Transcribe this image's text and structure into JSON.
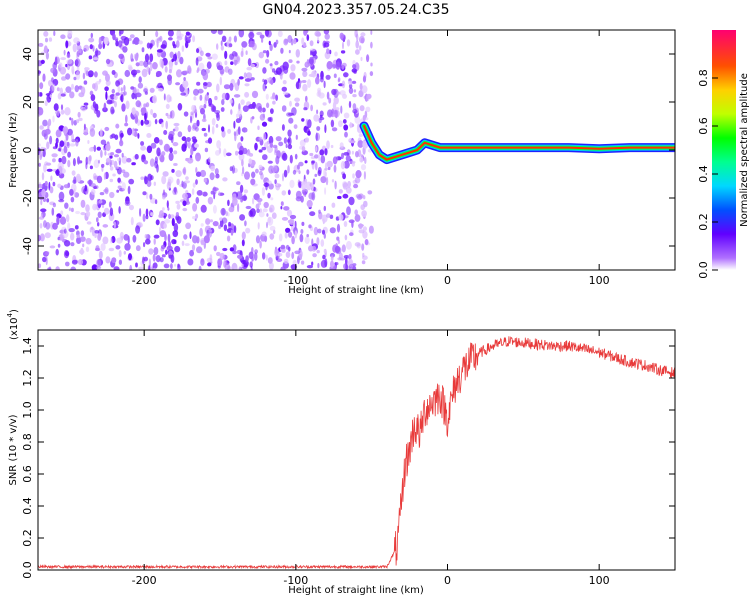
{
  "title": "GN04.2023.357.05.24.C35",
  "chart_data": [
    {
      "type": "heatmap",
      "xlabel": "Height of straight line (km)",
      "ylabel": "Frequency (Hz)",
      "xlim": [
        -270,
        150
      ],
      "ylim": [
        -50,
        50
      ],
      "xticks": [
        -200,
        -100,
        0,
        100
      ],
      "yticks": [
        -40,
        -20,
        0,
        20,
        40
      ],
      "colorbar": {
        "label": "Normalized spectral amplitude",
        "range": [
          0,
          1
        ],
        "ticks": [
          0.0,
          0.2,
          0.4,
          0.6,
          0.8
        ]
      },
      "ridge": [
        {
          "x": -55,
          "y": 10
        },
        {
          "x": -50,
          "y": 3
        },
        {
          "x": -45,
          "y": -2
        },
        {
          "x": -40,
          "y": -4
        },
        {
          "x": -35,
          "y": -3
        },
        {
          "x": -30,
          "y": -2
        },
        {
          "x": -25,
          "y": -1
        },
        {
          "x": -20,
          "y": 0
        },
        {
          "x": -15,
          "y": 3
        },
        {
          "x": -10,
          "y": 2
        },
        {
          "x": -5,
          "y": 1
        },
        {
          "x": 0,
          "y": 1
        },
        {
          "x": 20,
          "y": 1
        },
        {
          "x": 50,
          "y": 1
        },
        {
          "x": 80,
          "y": 1
        },
        {
          "x": 100,
          "y": 0.5
        },
        {
          "x": 120,
          "y": 1
        },
        {
          "x": 150,
          "y": 1
        }
      ]
    },
    {
      "type": "line",
      "xlabel": "Height of straight line (km)",
      "ylabel": "SNR (10 * v/v)",
      "ylabel_multiplier": "(x10",
      "ylabel_multiplier_exp": "4",
      "ylabel_multiplier_close": ")",
      "xlim": [
        -270,
        150
      ],
      "ylim": [
        0,
        1.5
      ],
      "xticks": [
        -200,
        -100,
        0,
        100
      ],
      "yticks": [
        0.0,
        0.2,
        0.4,
        0.6,
        0.8,
        1.0,
        1.2,
        1.4
      ],
      "series": [
        {
          "color": "#e83a3a",
          "x": [
            -270,
            -200,
            -100,
            -40,
            -33,
            -30,
            -28,
            -25,
            -22,
            -18,
            -15,
            -10,
            -5,
            0,
            5,
            10,
            20,
            30,
            40,
            50,
            60,
            70,
            80,
            90,
            100,
            110,
            120,
            130,
            140,
            150
          ],
          "y": [
            0.02,
            0.02,
            0.02,
            0.02,
            0.15,
            0.45,
            0.65,
            0.75,
            0.9,
            0.85,
            1.0,
            1.05,
            1.1,
            0.95,
            1.15,
            1.25,
            1.35,
            1.4,
            1.43,
            1.42,
            1.41,
            1.4,
            1.4,
            1.38,
            1.36,
            1.33,
            1.3,
            1.28,
            1.25,
            1.23
          ]
        }
      ]
    }
  ]
}
